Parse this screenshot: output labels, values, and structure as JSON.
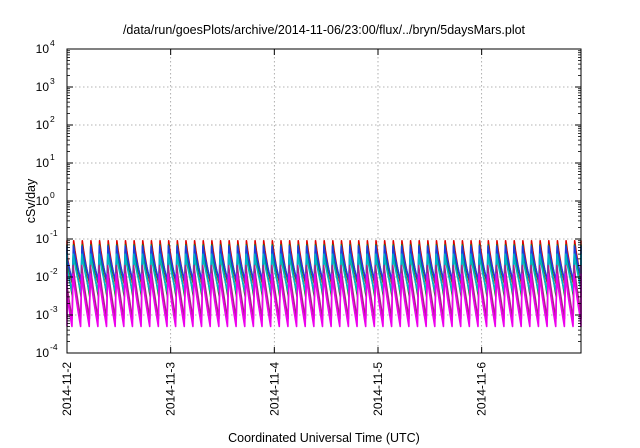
{
  "chart_data": {
    "type": "line",
    "title": "/data/run/goesPlots/archive/2014-11-06/23:00/flux/../bryn/5daysMars.plot",
    "xlabel": "Coordinated Universal Time (UTC)",
    "ylabel": "cSv/day",
    "yscale": "log",
    "ylim": [
      0.0001,
      10000
    ],
    "y_ticks": [
      {
        "base": "10",
        "exp": "-4",
        "value": 0.0001
      },
      {
        "base": "10",
        "exp": "-3",
        "value": 0.001
      },
      {
        "base": "10",
        "exp": "-2",
        "value": 0.01
      },
      {
        "base": "10",
        "exp": "-1",
        "value": 0.1
      },
      {
        "base": "10",
        "exp": "0",
        "value": 1
      },
      {
        "base": "10",
        "exp": "1",
        "value": 10
      },
      {
        "base": "10",
        "exp": "2",
        "value": 100
      },
      {
        "base": "10",
        "exp": "3",
        "value": 1000
      },
      {
        "base": "10",
        "exp": "4",
        "value": 10000
      }
    ],
    "xlim": [
      "2014-11-02T00:00",
      "2014-11-06T23:00"
    ],
    "x_ticks": [
      {
        "label": "2014-11-2",
        "value": "2014-11-02T00:00"
      },
      {
        "label": "2014-11-3",
        "value": "2014-11-03T00:00"
      },
      {
        "label": "2014-11-4",
        "value": "2014-11-04T00:00"
      },
      {
        "label": "2014-11-5",
        "value": "2014-11-05T00:00"
      },
      {
        "label": "2014-11-6",
        "value": "2014-11-06T00:00"
      }
    ],
    "grid": true,
    "period_hours": 2.0,
    "series": [
      {
        "color": "#dd0000",
        "peak": 0.09,
        "trough": 0.006
      },
      {
        "color": "#0b8f0b",
        "peak": 0.07,
        "trough": 0.003
      },
      {
        "color": "#1e3cdc",
        "peak": 0.065,
        "trough": 0.008
      },
      {
        "color": "#00b4c8",
        "peak": 0.04,
        "trough": 0.004
      },
      {
        "color": "#aa2288",
        "peak": 0.02,
        "trough": 0.0008
      },
      {
        "color": "#ee00ee",
        "peak": 0.012,
        "trough": 0.0005
      }
    ]
  }
}
